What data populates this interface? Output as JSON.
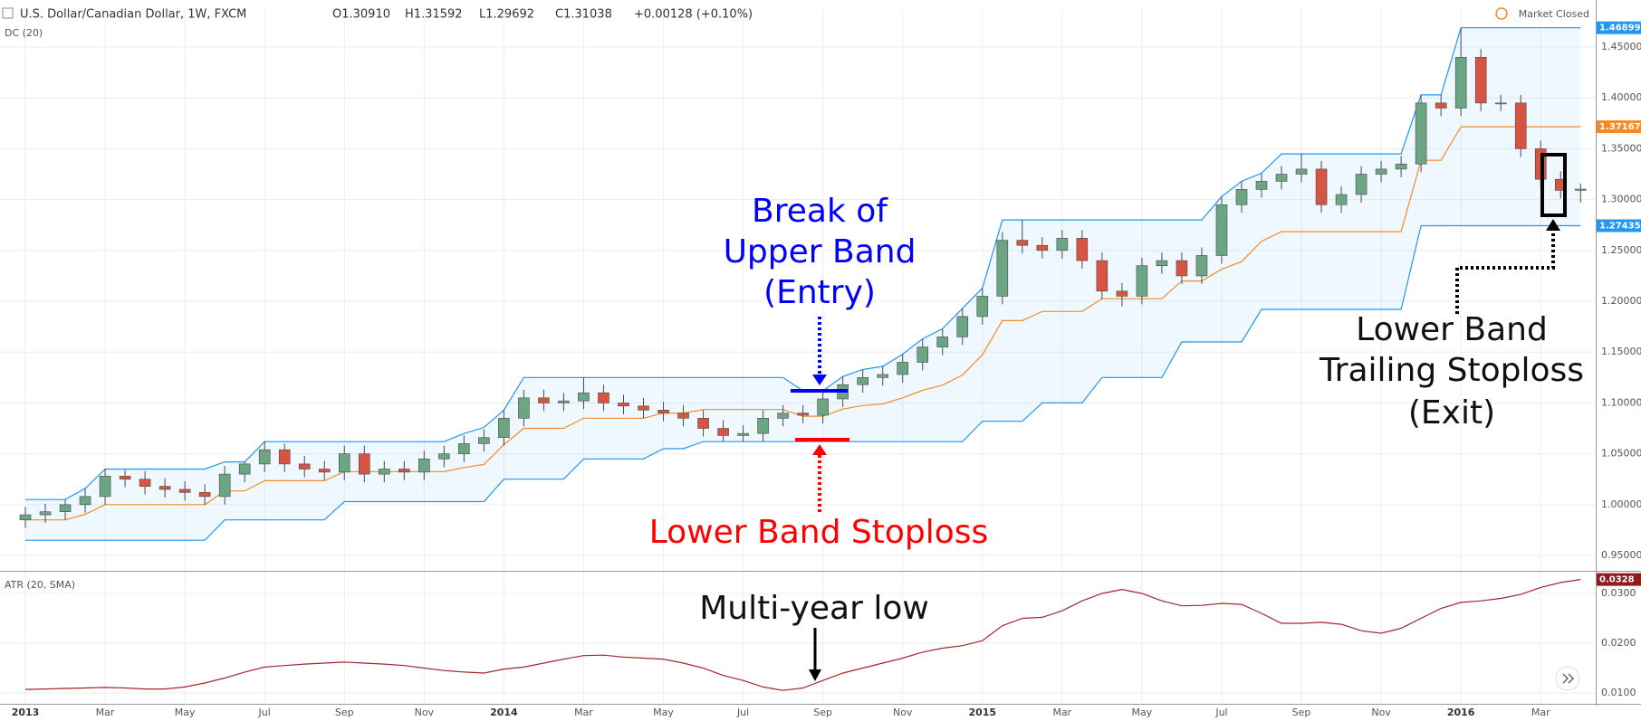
{
  "chart_data": [
    {
      "type": "candlestick",
      "title": "U.S. Dollar/Canadian Dollar, 1W, FXCM",
      "quote": [
        "O1.30910",
        "H1.31592",
        "L1.29692",
        "C1.31038",
        "+0.00128 (+0.10%)"
      ],
      "indicator": "DC (20)",
      "status": "Market Closed",
      "up_color": "#6ba583",
      "down_color": "#d75442",
      "wick_color": "#4a4a4a",
      "band_fill": "rgba(33,150,243,0.07)",
      "grid": true,
      "xlim": [
        -0.636,
        39.38
      ],
      "xticks": [
        {
          "value": 0,
          "label": "2013"
        },
        {
          "value": 2,
          "label": "Mar"
        },
        {
          "value": 4,
          "label": "May"
        },
        {
          "value": 6,
          "label": "Jul"
        },
        {
          "value": 8,
          "label": "Sep"
        },
        {
          "value": 10,
          "label": "Nov"
        },
        {
          "value": 12,
          "label": "2014"
        },
        {
          "value": 14,
          "label": "Mar"
        },
        {
          "value": 16,
          "label": "May"
        },
        {
          "value": 18,
          "label": "Jul"
        },
        {
          "value": 20,
          "label": "Sep"
        },
        {
          "value": 22,
          "label": "Nov"
        },
        {
          "value": 24,
          "label": "2015"
        },
        {
          "value": 26,
          "label": "Mar"
        },
        {
          "value": 28,
          "label": "May"
        },
        {
          "value": 30,
          "label": "Jul"
        },
        {
          "value": 32,
          "label": "Sep"
        },
        {
          "value": 34,
          "label": "Nov"
        },
        {
          "value": 36,
          "label": "2016"
        },
        {
          "value": 38,
          "label": "Mar"
        }
      ],
      "ylim": [
        0.9358,
        1.4883
      ],
      "yticks": [
        {
          "value": 0.95,
          "label": "0.95000"
        },
        {
          "value": 1.0,
          "label": "1.00000"
        },
        {
          "value": 1.05,
          "label": "1.05000"
        },
        {
          "value": 1.1,
          "label": "1.10000"
        },
        {
          "value": 1.15,
          "label": "1.15000"
        },
        {
          "value": 1.2,
          "label": "1.20000"
        },
        {
          "value": 1.25,
          "label": "1.25000"
        },
        {
          "value": 1.3,
          "label": "1.30000"
        },
        {
          "value": 1.35,
          "label": "1.35000"
        },
        {
          "value": 1.4,
          "label": "1.40000"
        },
        {
          "value": 1.45,
          "label": "1.45000"
        }
      ],
      "x": [
        0,
        0.5,
        1,
        1.5,
        2,
        2.5,
        3,
        3.5,
        4,
        4.5,
        5,
        5.5,
        6,
        6.5,
        7,
        7.5,
        8,
        8.5,
        9,
        9.5,
        10,
        10.5,
        11,
        11.5,
        12,
        12.5,
        13,
        13.5,
        14,
        14.5,
        15,
        15.5,
        16,
        16.5,
        17,
        17.5,
        18,
        18.5,
        19,
        19.5,
        20,
        20.5,
        21,
        21.5,
        22,
        22.5,
        23,
        23.5,
        24,
        24.5,
        25,
        25.5,
        26,
        26.5,
        27,
        27.5,
        28,
        28.5,
        29,
        29.5,
        30,
        30.5,
        31,
        31.5,
        32,
        32.5,
        33,
        33.5,
        34,
        34.5,
        35,
        35.5,
        36,
        36.5,
        37,
        37.5,
        38,
        38.5,
        39
      ],
      "open": [
        0.985,
        0.99,
        0.993,
        1.0,
        1.008,
        1.028,
        1.025,
        1.018,
        1.015,
        1.012,
        1.008,
        1.03,
        1.04,
        1.054,
        1.04,
        1.035,
        1.032,
        1.05,
        1.03,
        1.035,
        1.032,
        1.045,
        1.05,
        1.06,
        1.066,
        1.085,
        1.105,
        1.1,
        1.102,
        1.11,
        1.1,
        1.097,
        1.093,
        1.09,
        1.085,
        1.075,
        1.068,
        1.07,
        1.085,
        1.09,
        1.088,
        1.104,
        1.118,
        1.125,
        1.128,
        1.14,
        1.155,
        1.165,
        1.185,
        1.205,
        1.26,
        1.255,
        1.25,
        1.262,
        1.24,
        1.21,
        1.205,
        1.235,
        1.24,
        1.225,
        1.245,
        1.295,
        1.31,
        1.318,
        1.325,
        1.33,
        1.295,
        1.305,
        1.325,
        1.33,
        1.335,
        1.395,
        1.39,
        1.44,
        1.395,
        1.395,
        1.35,
        1.32,
        1.3091
      ],
      "high": [
        0.998,
        1.001,
        1.005,
        1.016,
        1.035,
        1.034,
        1.033,
        1.026,
        1.023,
        1.02,
        1.038,
        1.042,
        1.062,
        1.06,
        1.048,
        1.043,
        1.058,
        1.058,
        1.043,
        1.043,
        1.053,
        1.058,
        1.068,
        1.074,
        1.093,
        1.113,
        1.113,
        1.11,
        1.125,
        1.118,
        1.108,
        1.105,
        1.101,
        1.098,
        1.093,
        1.083,
        1.078,
        1.093,
        1.098,
        1.098,
        1.112,
        1.126,
        1.133,
        1.136,
        1.148,
        1.163,
        1.173,
        1.193,
        1.213,
        1.268,
        1.28,
        1.263,
        1.27,
        1.27,
        1.248,
        1.218,
        1.243,
        1.248,
        1.248,
        1.253,
        1.303,
        1.318,
        1.326,
        1.333,
        1.345,
        1.338,
        1.313,
        1.333,
        1.338,
        1.343,
        1.403,
        1.403,
        1.46899,
        1.448,
        1.403,
        1.403,
        1.358,
        1.328,
        1.31592
      ],
      "low": [
        0.977,
        0.982,
        0.985,
        0.992,
        1.0,
        1.017,
        1.01,
        1.007,
        1.004,
        1.0,
        1.0,
        1.022,
        1.032,
        1.032,
        1.027,
        1.024,
        1.024,
        1.022,
        1.022,
        1.024,
        1.024,
        1.037,
        1.042,
        1.052,
        1.058,
        1.077,
        1.092,
        1.092,
        1.094,
        1.092,
        1.089,
        1.085,
        1.082,
        1.077,
        1.067,
        1.062,
        1.062,
        1.062,
        1.077,
        1.08,
        1.08,
        1.096,
        1.11,
        1.117,
        1.12,
        1.132,
        1.147,
        1.157,
        1.177,
        1.197,
        1.247,
        1.242,
        1.242,
        1.232,
        1.202,
        1.195,
        1.197,
        1.227,
        1.217,
        1.217,
        1.237,
        1.287,
        1.302,
        1.31,
        1.317,
        1.287,
        1.287,
        1.297,
        1.317,
        1.322,
        1.327,
        1.382,
        1.382,
        1.387,
        1.387,
        1.342,
        1.312,
        1.3011,
        1.29692
      ],
      "close": [
        0.99,
        0.993,
        1.0,
        1.008,
        1.028,
        1.025,
        1.018,
        1.015,
        1.012,
        1.008,
        1.03,
        1.04,
        1.054,
        1.04,
        1.035,
        1.032,
        1.05,
        1.03,
        1.035,
        1.032,
        1.045,
        1.05,
        1.06,
        1.066,
        1.085,
        1.105,
        1.1,
        1.102,
        1.11,
        1.1,
        1.097,
        1.093,
        1.09,
        1.085,
        1.075,
        1.068,
        1.07,
        1.085,
        1.09,
        1.088,
        1.104,
        1.118,
        1.125,
        1.128,
        1.14,
        1.155,
        1.165,
        1.185,
        1.205,
        1.26,
        1.255,
        1.25,
        1.262,
        1.24,
        1.21,
        1.205,
        1.235,
        1.24,
        1.225,
        1.245,
        1.295,
        1.31,
        1.318,
        1.325,
        1.33,
        1.295,
        1.305,
        1.325,
        1.33,
        1.335,
        1.395,
        1.39,
        1.44,
        1.395,
        1.395,
        1.35,
        1.32,
        1.3091,
        1.31038
      ],
      "series": [
        {
          "color": "#2196f3",
          "values": [
            1.005,
            1.005,
            1.005,
            1.016,
            1.035,
            1.035,
            1.035,
            1.035,
            1.035,
            1.035,
            1.042,
            1.042,
            1.062,
            1.062,
            1.062,
            1.062,
            1.062,
            1.062,
            1.062,
            1.062,
            1.062,
            1.062,
            1.07,
            1.076,
            1.093,
            1.125,
            1.125,
            1.125,
            1.125,
            1.125,
            1.125,
            1.125,
            1.125,
            1.125,
            1.125,
            1.125,
            1.125,
            1.125,
            1.125,
            1.112,
            1.112,
            1.126,
            1.133,
            1.136,
            1.148,
            1.163,
            1.173,
            1.193,
            1.213,
            1.28,
            1.28,
            1.28,
            1.28,
            1.28,
            1.28,
            1.28,
            1.28,
            1.28,
            1.28,
            1.28,
            1.303,
            1.318,
            1.326,
            1.345,
            1.345,
            1.345,
            1.345,
            1.345,
            1.345,
            1.345,
            1.403,
            1.403,
            1.46899,
            1.46899,
            1.46899,
            1.46899,
            1.46899,
            1.46899,
            1.46899
          ]
        },
        {
          "color": "#f28c28",
          "values": [
            0.985,
            0.985,
            0.985,
            0.9905,
            1.0,
            1.0,
            1.0,
            1.0,
            1.0,
            1.0,
            1.0135,
            1.0135,
            1.0235,
            1.0235,
            1.0235,
            1.0235,
            1.0325,
            1.0325,
            1.0325,
            1.0325,
            1.0325,
            1.0325,
            1.0365,
            1.0395,
            1.059,
            1.075,
            1.075,
            1.075,
            1.085,
            1.085,
            1.085,
            1.085,
            1.09,
            1.09,
            1.0935,
            1.0935,
            1.0935,
            1.0935,
            1.0935,
            1.087,
            1.087,
            1.094,
            1.0975,
            1.099,
            1.105,
            1.1125,
            1.1175,
            1.1275,
            1.1475,
            1.181,
            1.181,
            1.19,
            1.19,
            1.19,
            1.2025,
            1.2025,
            1.2025,
            1.2025,
            1.22,
            1.22,
            1.2315,
            1.239,
            1.259,
            1.2685,
            1.2685,
            1.2685,
            1.2685,
            1.2685,
            1.2685,
            1.2685,
            1.338675,
            1.338675,
            1.37167,
            1.37167,
            1.37167,
            1.37167,
            1.37167,
            1.37167,
            1.37167
          ]
        },
        {
          "color": "#2196f3",
          "values": [
            0.965,
            0.965,
            0.965,
            0.965,
            0.965,
            0.965,
            0.965,
            0.965,
            0.965,
            0.965,
            0.985,
            0.985,
            0.985,
            0.985,
            0.985,
            0.985,
            1.003,
            1.003,
            1.003,
            1.003,
            1.003,
            1.003,
            1.003,
            1.003,
            1.025,
            1.025,
            1.025,
            1.025,
            1.045,
            1.045,
            1.045,
            1.045,
            1.055,
            1.055,
            1.062,
            1.062,
            1.062,
            1.062,
            1.062,
            1.062,
            1.062,
            1.062,
            1.062,
            1.062,
            1.062,
            1.062,
            1.062,
            1.062,
            1.082,
            1.082,
            1.082,
            1.1,
            1.1,
            1.1,
            1.125,
            1.125,
            1.125,
            1.125,
            1.16,
            1.16,
            1.16,
            1.16,
            1.192,
            1.192,
            1.192,
            1.192,
            1.192,
            1.192,
            1.192,
            1.192,
            1.27435,
            1.27435,
            1.27435,
            1.27435,
            1.27435,
            1.27435,
            1.27435,
            1.27435,
            1.27435
          ]
        }
      ],
      "annotations": {
        "entry": [
          "Break of",
          "Upper Band",
          "(Entry)"
        ],
        "stoploss": "Lower Band Stoploss",
        "exit": [
          "Lower Band",
          "Trailing Stoploss",
          "(Exit)"
        ]
      }
    },
    {
      "type": "line",
      "title": "ATR (20, SMA)",
      "color": "#a0282d",
      "tag_color": "#8e1c1c",
      "grid": true,
      "ylim": [
        0.008,
        0.03418
      ],
      "yticks": [
        {
          "value": 0.01,
          "label": "0.0100"
        },
        {
          "value": 0.02,
          "label": "0.0200"
        },
        {
          "value": 0.03,
          "label": "0.0300"
        }
      ],
      "values": [
        0.0107,
        0.0108,
        0.0109,
        0.011,
        0.0111,
        0.011,
        0.0108,
        0.0108,
        0.0112,
        0.012,
        0.013,
        0.0142,
        0.0152,
        0.0155,
        0.0158,
        0.016,
        0.0162,
        0.016,
        0.0158,
        0.0155,
        0.015,
        0.0145,
        0.0142,
        0.014,
        0.0148,
        0.0152,
        0.016,
        0.0168,
        0.0175,
        0.0176,
        0.0172,
        0.017,
        0.0168,
        0.016,
        0.015,
        0.0135,
        0.0125,
        0.0112,
        0.0105,
        0.011,
        0.0125,
        0.014,
        0.015,
        0.016,
        0.017,
        0.0182,
        0.019,
        0.0195,
        0.0205,
        0.0235,
        0.025,
        0.0252,
        0.0265,
        0.0285,
        0.03,
        0.0308,
        0.03,
        0.0285,
        0.0275,
        0.0276,
        0.028,
        0.0278,
        0.026,
        0.024,
        0.024,
        0.0242,
        0.0238,
        0.0225,
        0.022,
        0.023,
        0.025,
        0.027,
        0.0282,
        0.0285,
        0.029,
        0.0298,
        0.0312,
        0.0322,
        0.0328
      ],
      "annotation": "Multi-year low"
    }
  ]
}
